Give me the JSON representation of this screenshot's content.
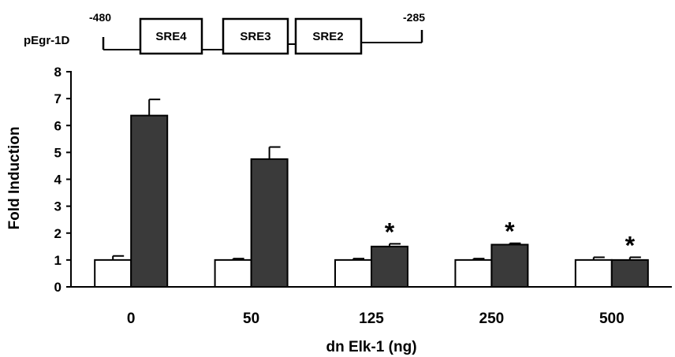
{
  "diagram": {
    "construct_label": "pEgr-1D",
    "left_coord": "-480",
    "right_coord": "-285",
    "elements": [
      "SRE4",
      "SRE3",
      "SRE2"
    ]
  },
  "chart_data": {
    "type": "bar",
    "title": "",
    "xlabel": "dn Elk-1 (ng)",
    "ylabel": "Fold Induction",
    "ylim": [
      0,
      8
    ],
    "yticks": [
      0,
      1,
      2,
      3,
      4,
      5,
      6,
      7,
      8
    ],
    "categories": [
      "0",
      "50",
      "125",
      "250",
      "500"
    ],
    "series": [
      {
        "values": [
          1.0,
          1.0,
          1.0,
          1.0,
          1.0
        ],
        "errors": [
          0.15,
          0.05,
          0.05,
          0.05,
          0.1
        ],
        "color": "#ffffff"
      },
      {
        "values": [
          6.37,
          4.75,
          1.5,
          1.57,
          1.0
        ],
        "errors": [
          0.6,
          0.45,
          0.1,
          0.05,
          0.1
        ],
        "color": "#3a3a3a"
      }
    ],
    "significance": [
      "",
      "",
      "*",
      "*",
      "*"
    ],
    "grid": false,
    "legend": "none"
  }
}
